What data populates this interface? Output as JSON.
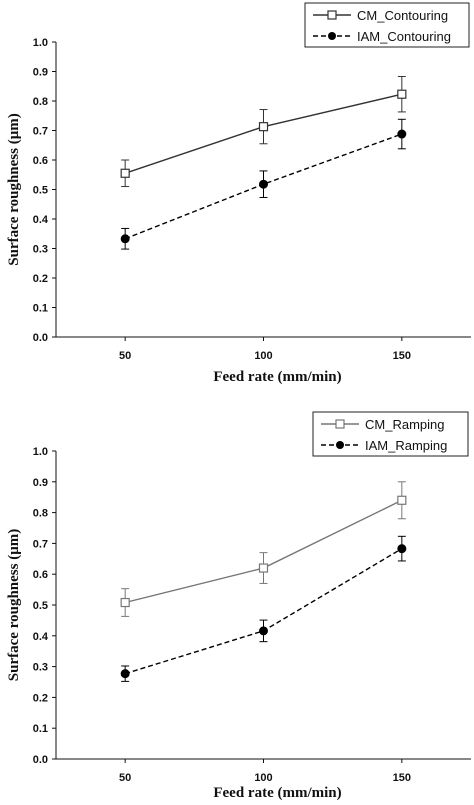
{
  "chart_data": [
    {
      "type": "line",
      "x": [
        50,
        100,
        150
      ],
      "xticks": [
        "50",
        "100",
        "150"
      ],
      "xlim": [
        25,
        175
      ],
      "ylim": [
        0,
        1.0
      ],
      "yticks": [
        "0.0",
        "0.1",
        "0.2",
        "0.3",
        "0.4",
        "0.5",
        "0.6",
        "0.7",
        "0.8",
        "0.9",
        "1.0"
      ],
      "xlabel": "Feed rate (mm/min)",
      "ylabel": "Surface roughness (μm)",
      "legend_position": "top-right",
      "grid": false,
      "series": [
        {
          "name": "CM_Contouring",
          "values": [
            0.555,
            0.713,
            0.823
          ],
          "errors": [
            0.045,
            0.058,
            0.06
          ],
          "marker": "open-square",
          "line": "solid",
          "color": "#333333"
        },
        {
          "name": "IAM_Contouring",
          "values": [
            0.333,
            0.518,
            0.688
          ],
          "errors": [
            0.035,
            0.045,
            0.05
          ],
          "marker": "filled-circle",
          "line": "dashed",
          "color": "#000000"
        }
      ]
    },
    {
      "type": "line",
      "x": [
        50,
        100,
        150
      ],
      "xticks": [
        "50",
        "100",
        "150"
      ],
      "xlim": [
        25,
        175
      ],
      "ylim": [
        0,
        1.0
      ],
      "yticks": [
        "0.0",
        "0.1",
        "0.2",
        "0.3",
        "0.4",
        "0.5",
        "0.6",
        "0.7",
        "0.8",
        "0.9",
        "1.0"
      ],
      "xlabel": "Feed rate (mm/min)",
      "ylabel": "Surface roughness (μm)",
      "legend_position": "top-right",
      "grid": false,
      "series": [
        {
          "name": "CM_Ramping",
          "values": [
            0.508,
            0.62,
            0.84
          ],
          "errors": [
            0.045,
            0.05,
            0.06
          ],
          "marker": "open-square",
          "line": "solid",
          "color": "#777777"
        },
        {
          "name": "IAM_Ramping",
          "values": [
            0.277,
            0.416,
            0.683
          ],
          "errors": [
            0.025,
            0.035,
            0.04
          ],
          "marker": "filled-circle",
          "line": "dashed",
          "color": "#000000"
        }
      ]
    }
  ]
}
